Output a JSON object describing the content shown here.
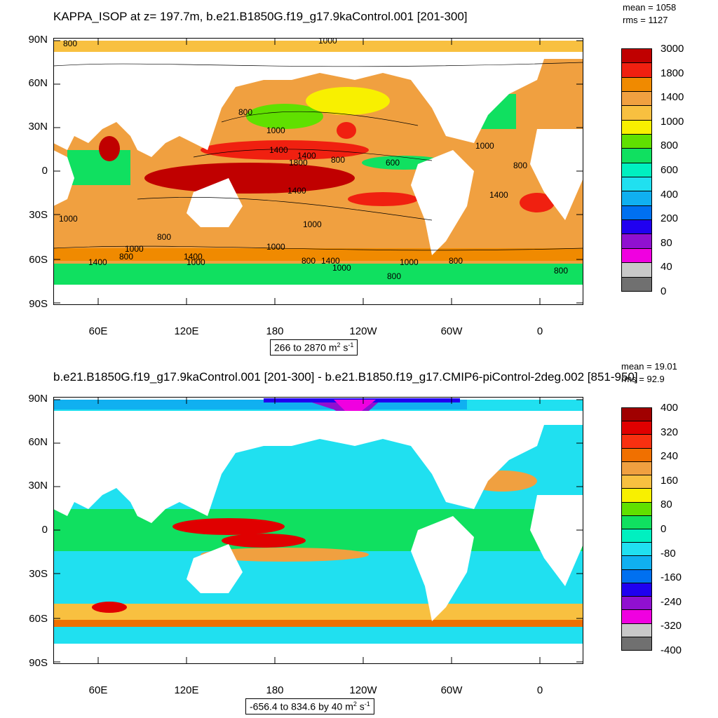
{
  "panel1": {
    "title": "KAPPA_ISOP at z= 197.7m, b.e21.B1850G.f19_g17.9kaControl.001 [201-300]",
    "mean": "mean = 1058",
    "rms": "rms = 1127",
    "range": "266 to 2870 m",
    "units_exp1": "2",
    "units_mid": " s",
    "units_exp2": "-1",
    "lat_labels": [
      "90N",
      "60N",
      "30N",
      "0",
      "30S",
      "60S",
      "90S"
    ],
    "lon_labels": [
      "60E",
      "120E",
      "180",
      "120W",
      "60W",
      "0"
    ],
    "contour_labels": [
      "800",
      "1000",
      "800",
      "1000",
      "1400",
      "1400",
      "1800",
      "600",
      "800",
      "1000",
      "800",
      "1400",
      "1000",
      "1000",
      "800",
      "1000",
      "800",
      "1000",
      "1400",
      "1400",
      "1000",
      "800",
      "1400",
      "1000",
      "1000",
      "1400",
      "800",
      "800",
      "800"
    ],
    "colorbar_labels": [
      "3000",
      "1800",
      "1400",
      "1000",
      "800",
      "600",
      "400",
      "200",
      "80",
      "40",
      "0"
    ],
    "colorbar_colors": [
      "#c00000",
      "#f02010",
      "#f08a00",
      "#f0a040",
      "#f8c040",
      "#f8f000",
      "#60e000",
      "#10e060",
      "#00f0c0",
      "#20e0f0",
      "#10b0f0",
      "#0070f0",
      "#2000f0",
      "#9010d0",
      "#f000e0",
      "#c8c8c8",
      "#707070"
    ]
  },
  "panel2": {
    "title": "b.e21.B1850G.f19_g17.9kaControl.001 [201-300] - b.e21.B1850.f19_g17.CMIP6-piControl-2deg.002 [851-950]",
    "mean": "mean = 19.01",
    "rms": "rms = 92.9",
    "range": "-656.4 to 834.6 by 40 m",
    "units_exp1": "2",
    "units_mid": " s",
    "units_exp2": "-1",
    "lat_labels": [
      "90N",
      "60N",
      "30N",
      "0",
      "30S",
      "60S",
      "90S"
    ],
    "lon_labels": [
      "60E",
      "120E",
      "180",
      "120W",
      "60W",
      "0"
    ],
    "colorbar_labels": [
      "400",
      "320",
      "240",
      "160",
      "80",
      "0",
      "-80",
      "-160",
      "-240",
      "-320",
      "-400"
    ],
    "colorbar_colors": [
      "#a00000",
      "#e00000",
      "#f83010",
      "#f07000",
      "#f0a040",
      "#f8c040",
      "#f8f000",
      "#60e000",
      "#10e060",
      "#00f0c0",
      "#20e0f0",
      "#10b0f0",
      "#0070f0",
      "#2000f0",
      "#9010d0",
      "#f000e0",
      "#c8c8c8",
      "#707070"
    ]
  }
}
